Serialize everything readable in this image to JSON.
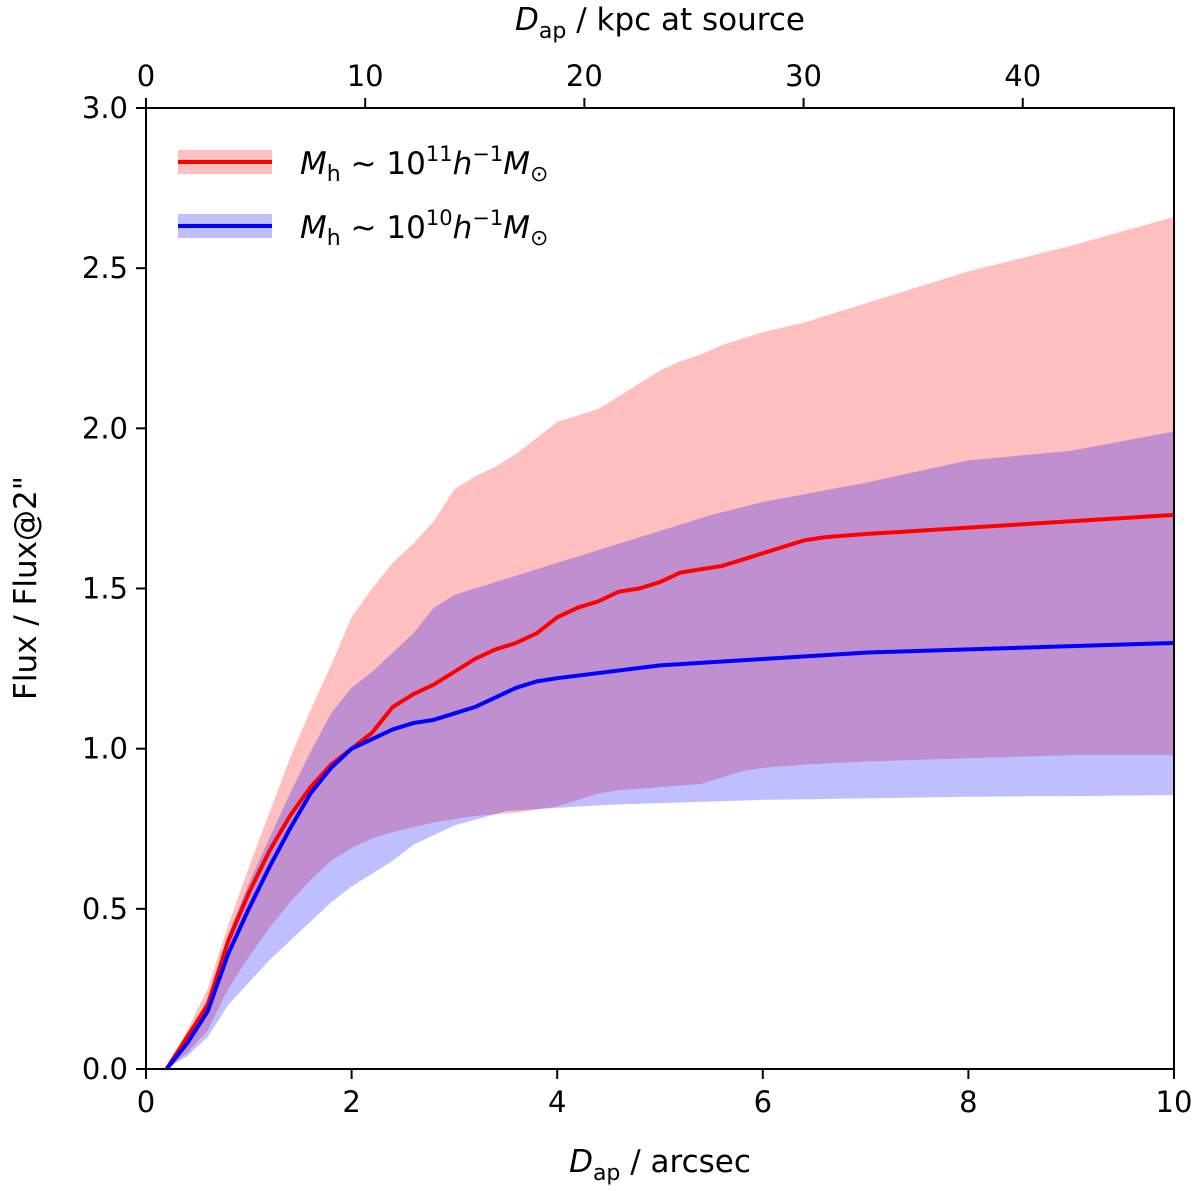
{
  "chart_data": {
    "type": "line",
    "title": "",
    "xlabel": {
      "main": "D",
      "sub": "ap",
      "rest": " / arcsec"
    },
    "ylabel": "Flux / Flux@2\"",
    "top_xlabel": {
      "main": "D",
      "sub": "ap",
      "rest": " / kpc at source"
    },
    "xlim": [
      0,
      10
    ],
    "ylim": [
      0,
      3.0
    ],
    "top_xlim": [
      0,
      46.9
    ],
    "xticks": [
      "0",
      "2",
      "4",
      "6",
      "8",
      "10"
    ],
    "yticks": [
      "0.0",
      "0.5",
      "1.0",
      "1.5",
      "2.0",
      "2.5",
      "3.0"
    ],
    "top_xticks": [
      "0",
      "10",
      "20",
      "30",
      "40"
    ],
    "grid": false,
    "legend_position": "top-left",
    "series": [
      {
        "name": "M_h ~ 10^11 h^-1 M_sun",
        "legend": {
          "m": "M",
          "msub": "h",
          "tilde": " ~ 10",
          "exp": "11",
          "h": "h",
          "hexp": "−1",
          "M": "M",
          "sun": "⊙"
        },
        "color": "#ff0000",
        "band_color": "#ff0000",
        "x": [
          0.2,
          0.4,
          0.6,
          0.8,
          1.0,
          1.2,
          1.4,
          1.6,
          1.8,
          2.0,
          2.2,
          2.4,
          2.6,
          2.8,
          3.0,
          3.2,
          3.4,
          3.6,
          3.8,
          4.0,
          4.2,
          4.4,
          4.6,
          4.8,
          5.0,
          5.2,
          5.4,
          5.6,
          5.8,
          6.0,
          6.4,
          6.6,
          7.0,
          8.0,
          9.0,
          10.0
        ],
        "y": [
          0,
          0.1,
          0.2,
          0.4,
          0.55,
          0.68,
          0.79,
          0.88,
          0.95,
          1.0,
          1.05,
          1.13,
          1.17,
          1.2,
          1.24,
          1.28,
          1.31,
          1.33,
          1.36,
          1.41,
          1.44,
          1.46,
          1.49,
          1.5,
          1.52,
          1.55,
          1.56,
          1.57,
          1.59,
          1.61,
          1.65,
          1.66,
          1.67,
          1.69,
          1.71,
          1.73
        ],
        "band_x": [
          0.2,
          0.4,
          0.6,
          0.8,
          1.0,
          1.2,
          1.4,
          1.6,
          1.8,
          2.0,
          2.2,
          2.4,
          2.6,
          2.8,
          3.0,
          3.2,
          3.4,
          3.6,
          3.8,
          4.0,
          4.4,
          4.6,
          4.8,
          5.0,
          5.2,
          5.4,
          5.6,
          5.8,
          6.0,
          6.4,
          7.0,
          7.5,
          8.0,
          9.0,
          10.0
        ],
        "band_upper": [
          0,
          0.12,
          0.25,
          0.45,
          0.63,
          0.8,
          0.97,
          1.12,
          1.26,
          1.41,
          1.5,
          1.58,
          1.64,
          1.71,
          1.81,
          1.85,
          1.88,
          1.92,
          1.97,
          2.02,
          2.06,
          2.1,
          2.14,
          2.18,
          2.21,
          2.23,
          2.26,
          2.28,
          2.3,
          2.33,
          2.39,
          2.44,
          2.49,
          2.57,
          2.66
        ],
        "band_lower": [
          0,
          0.05,
          0.12,
          0.25,
          0.35,
          0.44,
          0.52,
          0.59,
          0.65,
          0.69,
          0.72,
          0.74,
          0.755,
          0.77,
          0.78,
          0.79,
          0.795,
          0.8,
          0.81,
          0.82,
          0.86,
          0.87,
          0.875,
          0.88,
          0.885,
          0.89,
          0.91,
          0.93,
          0.94,
          0.95,
          0.96,
          0.965,
          0.97,
          0.98,
          0.98
        ]
      },
      {
        "name": "M_h ~ 10^10 h^-1 M_sun",
        "legend": {
          "m": "M",
          "msub": "h",
          "tilde": " ~ 10",
          "exp": "10",
          "h": "h",
          "hexp": "−1",
          "M": "M",
          "sun": "⊙"
        },
        "color": "#0000ff",
        "band_color": "#0000ff",
        "x": [
          0.2,
          0.4,
          0.6,
          0.8,
          1.0,
          1.2,
          1.4,
          1.6,
          1.8,
          2.0,
          2.2,
          2.4,
          2.6,
          2.8,
          3.0,
          3.2,
          3.4,
          3.6,
          3.8,
          4.0,
          5.0,
          6.0,
          7.0,
          8.0,
          9.0,
          10.0
        ],
        "y": [
          0,
          0.08,
          0.18,
          0.36,
          0.5,
          0.63,
          0.75,
          0.86,
          0.94,
          1.0,
          1.03,
          1.06,
          1.08,
          1.09,
          1.11,
          1.13,
          1.16,
          1.19,
          1.21,
          1.22,
          1.26,
          1.28,
          1.3,
          1.31,
          1.32,
          1.33
        ],
        "band_x": [
          0.2,
          0.4,
          0.6,
          0.8,
          1.0,
          1.2,
          1.4,
          1.6,
          1.8,
          2.0,
          2.2,
          2.4,
          2.6,
          2.8,
          3.0,
          3.5,
          4.0,
          4.5,
          5.0,
          5.5,
          6.0,
          7.0,
          8.0,
          9.0,
          10.0
        ],
        "band_upper": [
          0,
          0.1,
          0.22,
          0.42,
          0.58,
          0.72,
          0.86,
          0.99,
          1.11,
          1.19,
          1.24,
          1.3,
          1.36,
          1.44,
          1.48,
          1.53,
          1.58,
          1.63,
          1.68,
          1.73,
          1.77,
          1.83,
          1.9,
          1.93,
          1.99
        ],
        "band_lower": [
          0,
          0.04,
          0.1,
          0.2,
          0.27,
          0.34,
          0.4,
          0.46,
          0.52,
          0.57,
          0.61,
          0.65,
          0.7,
          0.73,
          0.76,
          0.805,
          0.815,
          0.825,
          0.83,
          0.835,
          0.84,
          0.845,
          0.85,
          0.852,
          0.855
        ]
      }
    ]
  }
}
